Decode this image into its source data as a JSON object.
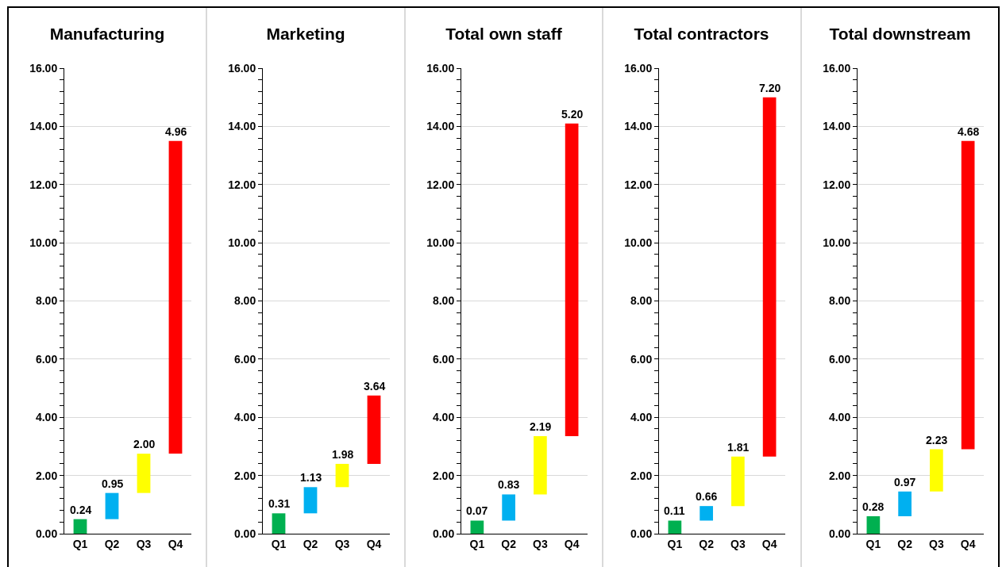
{
  "chart_data": [
    {
      "type": "bar",
      "title": "Manufacturing",
      "categories": [
        "Q1",
        "Q2",
        "Q3",
        "Q4"
      ],
      "base": [
        0,
        0.5,
        1.4,
        2.75
      ],
      "values": [
        0.5,
        0.9,
        1.35,
        10.75
      ],
      "colors": [
        "#00b050",
        "#00b0f0",
        "#ffff00",
        "#ff0000"
      ],
      "annotations": [
        {
          "text": "0.24",
          "x": "Q1",
          "y": 0.5
        },
        {
          "text": "0.95",
          "x": "Q2",
          "y": 1.4
        },
        {
          "text": "2.00",
          "x": "Q3",
          "y": 2.75
        },
        {
          "text": "4.96",
          "x": "Q4",
          "y": 13.5
        }
      ],
      "ylim": [
        0,
        16
      ],
      "yticks": [
        {
          "value": 0,
          "label": "0.00"
        },
        {
          "value": 0.4,
          "label": null
        },
        {
          "value": 0.8,
          "label": null
        },
        {
          "value": 1.2,
          "label": null
        },
        {
          "value": 1.6,
          "label": null
        },
        {
          "value": 2,
          "label": "2.00"
        },
        {
          "value": 2.4,
          "label": null
        },
        {
          "value": 2.8,
          "label": null
        },
        {
          "value": 3.2,
          "label": null
        },
        {
          "value": 3.6,
          "label": null
        },
        {
          "value": 4,
          "label": "4.00"
        },
        {
          "value": 4.4,
          "label": null
        },
        {
          "value": 4.8,
          "label": null
        },
        {
          "value": 5.2,
          "label": null
        },
        {
          "value": 5.6,
          "label": null
        },
        {
          "value": 6,
          "label": "6.00"
        },
        {
          "value": 6.4,
          "label": null
        },
        {
          "value": 6.8,
          "label": null
        },
        {
          "value": 7.2,
          "label": null
        },
        {
          "value": 7.6,
          "label": null
        },
        {
          "value": 8,
          "label": "8.00"
        },
        {
          "value": 8.4,
          "label": null
        },
        {
          "value": 8.8,
          "label": null
        },
        {
          "value": 9.2,
          "label": null
        },
        {
          "value": 9.6,
          "label": null
        },
        {
          "value": 10,
          "label": "10.00"
        },
        {
          "value": 10.4,
          "label": null
        },
        {
          "value": 10.8,
          "label": null
        },
        {
          "value": 11.2,
          "label": null
        },
        {
          "value": 11.6,
          "label": null
        },
        {
          "value": 12,
          "label": "12.00"
        },
        {
          "value": 12.4,
          "label": null
        },
        {
          "value": 12.8,
          "label": null
        },
        {
          "value": 13.2,
          "label": null
        },
        {
          "value": 13.6,
          "label": null
        },
        {
          "value": 14,
          "label": "14.00"
        },
        {
          "value": 14.4,
          "label": null
        },
        {
          "value": 14.8,
          "label": null
        },
        {
          "value": 15.2,
          "label": null
        },
        {
          "value": 15.6,
          "label": null
        },
        {
          "value": 16,
          "label": "16.00"
        }
      ],
      "grid": "y"
    },
    {
      "type": "bar",
      "title": "Marketing",
      "categories": [
        "Q1",
        "Q2",
        "Q3",
        "Q4"
      ],
      "base": [
        0,
        0.7,
        1.6,
        2.4
      ],
      "values": [
        0.7,
        0.9,
        0.8,
        2.35
      ],
      "colors": [
        "#00b050",
        "#00b0f0",
        "#ffff00",
        "#ff0000"
      ],
      "annotations": [
        {
          "text": "0.31",
          "x": "Q1",
          "y": 0.7
        },
        {
          "text": "1.13",
          "x": "Q2",
          "y": 1.6
        },
        {
          "text": "1.98",
          "x": "Q3",
          "y": 2.4
        },
        {
          "text": "3.64",
          "x": "Q4",
          "y": 4.75
        }
      ],
      "ylim": [
        0,
        16
      ],
      "yticks": [
        {
          "value": 0,
          "label": "0.00"
        },
        {
          "value": 0.4,
          "label": null
        },
        {
          "value": 0.8,
          "label": null
        },
        {
          "value": 1.2,
          "label": null
        },
        {
          "value": 1.6,
          "label": null
        },
        {
          "value": 2,
          "label": "2.00"
        },
        {
          "value": 2.4,
          "label": null
        },
        {
          "value": 2.8,
          "label": null
        },
        {
          "value": 3.2,
          "label": null
        },
        {
          "value": 3.6,
          "label": null
        },
        {
          "value": 4,
          "label": "4.00"
        },
        {
          "value": 4.4,
          "label": null
        },
        {
          "value": 4.8,
          "label": null
        },
        {
          "value": 5.2,
          "label": null
        },
        {
          "value": 5.6,
          "label": null
        },
        {
          "value": 6,
          "label": "6.00"
        },
        {
          "value": 6.4,
          "label": null
        },
        {
          "value": 6.8,
          "label": null
        },
        {
          "value": 7.2,
          "label": null
        },
        {
          "value": 7.6,
          "label": null
        },
        {
          "value": 8,
          "label": "8.00"
        },
        {
          "value": 8.4,
          "label": null
        },
        {
          "value": 8.8,
          "label": null
        },
        {
          "value": 9.2,
          "label": null
        },
        {
          "value": 9.6,
          "label": null
        },
        {
          "value": 10,
          "label": "10.00"
        },
        {
          "value": 10.4,
          "label": null
        },
        {
          "value": 10.8,
          "label": null
        },
        {
          "value": 11.2,
          "label": null
        },
        {
          "value": 11.6,
          "label": null
        },
        {
          "value": 12,
          "label": "12.00"
        },
        {
          "value": 12.4,
          "label": null
        },
        {
          "value": 12.8,
          "label": null
        },
        {
          "value": 13.2,
          "label": null
        },
        {
          "value": 13.6,
          "label": null
        },
        {
          "value": 14,
          "label": "14.00"
        },
        {
          "value": 14.4,
          "label": null
        },
        {
          "value": 14.8,
          "label": null
        },
        {
          "value": 15.2,
          "label": null
        },
        {
          "value": 15.6,
          "label": null
        },
        {
          "value": 16,
          "label": "16.00"
        }
      ],
      "grid": "y"
    },
    {
      "type": "bar",
      "title": "Total own staff",
      "categories": [
        "Q1",
        "Q2",
        "Q3",
        "Q4"
      ],
      "base": [
        0,
        0.45,
        1.35,
        3.35
      ],
      "values": [
        0.45,
        0.9,
        2.0,
        10.75
      ],
      "colors": [
        "#00b050",
        "#00b0f0",
        "#ffff00",
        "#ff0000"
      ],
      "annotations": [
        {
          "text": "0.07",
          "x": "Q1",
          "y": 0.45
        },
        {
          "text": "0.83",
          "x": "Q2",
          "y": 1.35
        },
        {
          "text": "2.19",
          "x": "Q3",
          "y": 3.35
        },
        {
          "text": "5.20",
          "x": "Q4",
          "y": 14.1
        }
      ],
      "ylim": [
        0,
        16
      ],
      "yticks": [
        {
          "value": 0,
          "label": "0.00"
        },
        {
          "value": 0.4,
          "label": null
        },
        {
          "value": 0.8,
          "label": null
        },
        {
          "value": 1.2,
          "label": null
        },
        {
          "value": 1.6,
          "label": null
        },
        {
          "value": 2,
          "label": "2.00"
        },
        {
          "value": 2.4,
          "label": null
        },
        {
          "value": 2.8,
          "label": null
        },
        {
          "value": 3.2,
          "label": null
        },
        {
          "value": 3.6,
          "label": null
        },
        {
          "value": 4,
          "label": "4.00"
        },
        {
          "value": 4.4,
          "label": null
        },
        {
          "value": 4.8,
          "label": null
        },
        {
          "value": 5.2,
          "label": null
        },
        {
          "value": 5.6,
          "label": null
        },
        {
          "value": 6,
          "label": "6.00"
        },
        {
          "value": 6.4,
          "label": null
        },
        {
          "value": 6.8,
          "label": null
        },
        {
          "value": 7.2,
          "label": null
        },
        {
          "value": 7.6,
          "label": null
        },
        {
          "value": 8,
          "label": "8.00"
        },
        {
          "value": 8.4,
          "label": null
        },
        {
          "value": 8.8,
          "label": null
        },
        {
          "value": 9.2,
          "label": null
        },
        {
          "value": 9.6,
          "label": null
        },
        {
          "value": 10,
          "label": "10.00"
        },
        {
          "value": 10.4,
          "label": null
        },
        {
          "value": 10.8,
          "label": null
        },
        {
          "value": 11.2,
          "label": null
        },
        {
          "value": 11.6,
          "label": null
        },
        {
          "value": 12,
          "label": "12.00"
        },
        {
          "value": 12.4,
          "label": null
        },
        {
          "value": 12.8,
          "label": null
        },
        {
          "value": 13.2,
          "label": null
        },
        {
          "value": 13.6,
          "label": null
        },
        {
          "value": 14,
          "label": "14.00"
        },
        {
          "value": 14.4,
          "label": null
        },
        {
          "value": 14.8,
          "label": null
        },
        {
          "value": 15.2,
          "label": null
        },
        {
          "value": 15.6,
          "label": null
        },
        {
          "value": 16,
          "label": "16.00"
        }
      ],
      "grid": "y"
    },
    {
      "type": "bar",
      "title": "Total contractors",
      "categories": [
        "Q1",
        "Q2",
        "Q3",
        "Q4"
      ],
      "base": [
        0,
        0.45,
        0.95,
        2.65
      ],
      "values": [
        0.45,
        0.5,
        1.7,
        12.35
      ],
      "colors": [
        "#00b050",
        "#00b0f0",
        "#ffff00",
        "#ff0000"
      ],
      "annotations": [
        {
          "text": "0.11",
          "x": "Q1",
          "y": 0.45
        },
        {
          "text": "0.66",
          "x": "Q2",
          "y": 0.95
        },
        {
          "text": "1.81",
          "x": "Q3",
          "y": 2.65
        },
        {
          "text": "7.20",
          "x": "Q4",
          "y": 15.0
        }
      ],
      "ylim": [
        0,
        16
      ],
      "yticks": [
        {
          "value": 0,
          "label": "0.00"
        },
        {
          "value": 0.4,
          "label": null
        },
        {
          "value": 0.8,
          "label": null
        },
        {
          "value": 1.2,
          "label": null
        },
        {
          "value": 1.6,
          "label": null
        },
        {
          "value": 2,
          "label": "2.00"
        },
        {
          "value": 2.4,
          "label": null
        },
        {
          "value": 2.8,
          "label": null
        },
        {
          "value": 3.2,
          "label": null
        },
        {
          "value": 3.6,
          "label": null
        },
        {
          "value": 4,
          "label": "4.00"
        },
        {
          "value": 4.4,
          "label": null
        },
        {
          "value": 4.8,
          "label": null
        },
        {
          "value": 5.2,
          "label": null
        },
        {
          "value": 5.6,
          "label": null
        },
        {
          "value": 6,
          "label": "6.00"
        },
        {
          "value": 6.4,
          "label": null
        },
        {
          "value": 6.8,
          "label": null
        },
        {
          "value": 7.2,
          "label": null
        },
        {
          "value": 7.6,
          "label": null
        },
        {
          "value": 8,
          "label": "8.00"
        },
        {
          "value": 8.4,
          "label": null
        },
        {
          "value": 8.8,
          "label": null
        },
        {
          "value": 9.2,
          "label": null
        },
        {
          "value": 9.6,
          "label": null
        },
        {
          "value": 10,
          "label": "10.00"
        },
        {
          "value": 10.4,
          "label": null
        },
        {
          "value": 10.8,
          "label": null
        },
        {
          "value": 11.2,
          "label": null
        },
        {
          "value": 11.6,
          "label": null
        },
        {
          "value": 12,
          "label": "12.00"
        },
        {
          "value": 12.4,
          "label": null
        },
        {
          "value": 12.8,
          "label": null
        },
        {
          "value": 13.2,
          "label": null
        },
        {
          "value": 13.6,
          "label": null
        },
        {
          "value": 14,
          "label": "14.00"
        },
        {
          "value": 14.4,
          "label": null
        },
        {
          "value": 14.8,
          "label": null
        },
        {
          "value": 15.2,
          "label": null
        },
        {
          "value": 15.6,
          "label": null
        },
        {
          "value": 16,
          "label": "16.00"
        }
      ],
      "grid": "y"
    },
    {
      "type": "bar",
      "title": "Total downstream",
      "categories": [
        "Q1",
        "Q2",
        "Q3",
        "Q4"
      ],
      "base": [
        0,
        0.6,
        1.45,
        2.9
      ],
      "values": [
        0.6,
        0.85,
        1.45,
        10.6
      ],
      "colors": [
        "#00b050",
        "#00b0f0",
        "#ffff00",
        "#ff0000"
      ],
      "annotations": [
        {
          "text": "0.28",
          "x": "Q1",
          "y": 0.6
        },
        {
          "text": "0.97",
          "x": "Q2",
          "y": 1.45
        },
        {
          "text": "2.23",
          "x": "Q3",
          "y": 2.9
        },
        {
          "text": "4.68",
          "x": "Q4",
          "y": 13.5
        }
      ],
      "ylim": [
        0,
        16
      ],
      "yticks": [
        {
          "value": 0,
          "label": "0.00"
        },
        {
          "value": 0.4,
          "label": null
        },
        {
          "value": 0.8,
          "label": null
        },
        {
          "value": 1.2,
          "label": null
        },
        {
          "value": 1.6,
          "label": null
        },
        {
          "value": 2,
          "label": "2.00"
        },
        {
          "value": 2.4,
          "label": null
        },
        {
          "value": 2.8,
          "label": null
        },
        {
          "value": 3.2,
          "label": null
        },
        {
          "value": 3.6,
          "label": null
        },
        {
          "value": 4,
          "label": "4.00"
        },
        {
          "value": 4.4,
          "label": null
        },
        {
          "value": 4.8,
          "label": null
        },
        {
          "value": 5.2,
          "label": null
        },
        {
          "value": 5.6,
          "label": null
        },
        {
          "value": 6,
          "label": "6.00"
        },
        {
          "value": 6.4,
          "label": null
        },
        {
          "value": 6.8,
          "label": null
        },
        {
          "value": 7.2,
          "label": null
        },
        {
          "value": 7.6,
          "label": null
        },
        {
          "value": 8,
          "label": "8.00"
        },
        {
          "value": 8.4,
          "label": null
        },
        {
          "value": 8.8,
          "label": null
        },
        {
          "value": 9.2,
          "label": null
        },
        {
          "value": 9.6,
          "label": null
        },
        {
          "value": 10,
          "label": "10.00"
        },
        {
          "value": 10.4,
          "label": null
        },
        {
          "value": 10.8,
          "label": null
        },
        {
          "value": 11.2,
          "label": null
        },
        {
          "value": 11.6,
          "label": null
        },
        {
          "value": 12,
          "label": "12.00"
        },
        {
          "value": 12.4,
          "label": null
        },
        {
          "value": 12.8,
          "label": null
        },
        {
          "value": 13.2,
          "label": null
        },
        {
          "value": 13.6,
          "label": null
        },
        {
          "value": 14,
          "label": "14.00"
        },
        {
          "value": 14.4,
          "label": null
        },
        {
          "value": 14.8,
          "label": null
        },
        {
          "value": 15.2,
          "label": null
        },
        {
          "value": 15.6,
          "label": null
        },
        {
          "value": 16,
          "label": "16.00"
        }
      ],
      "grid": "y"
    }
  ]
}
